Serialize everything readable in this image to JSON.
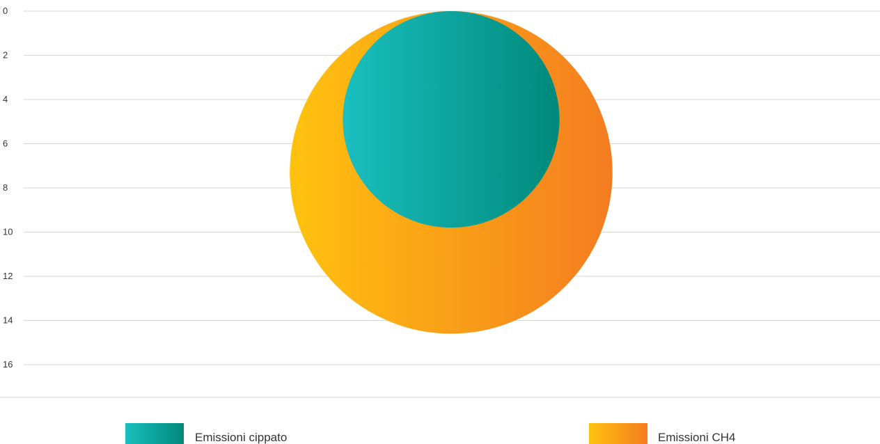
{
  "chart_data": {
    "type": "bubble",
    "title": "",
    "xlabel": "",
    "ylabel": "",
    "y_axis": {
      "min": 0,
      "max": 16,
      "step": 2,
      "inverted": true,
      "ticks": [
        "0",
        "2",
        "4",
        "6",
        "8",
        "10",
        "12",
        "14",
        "16"
      ]
    },
    "grid": true,
    "legend_position": "bottom",
    "series": [
      {
        "name": "Emissioni CH4",
        "y": 7.3,
        "size": 7.3,
        "gradient": [
          "#FFC20E",
          "#F47C20"
        ]
      },
      {
        "name": "Emissioni cippato",
        "y": 4.9,
        "size": 4.9,
        "gradient": [
          "#1ABFBF",
          "#00897B"
        ]
      }
    ]
  }
}
